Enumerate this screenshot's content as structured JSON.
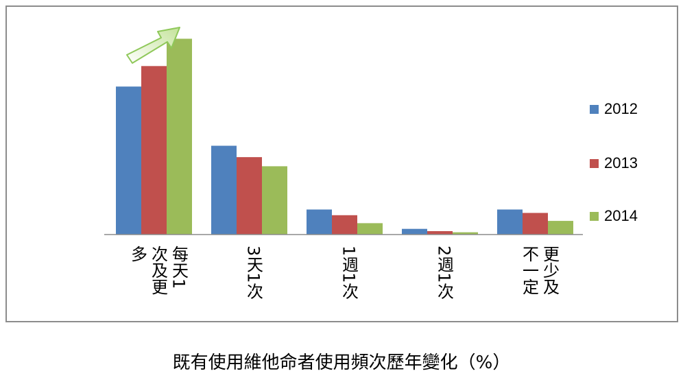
{
  "chart_data": {
    "type": "bar",
    "title": "",
    "caption": "既有使用維他命者使用頻次歷年變化（%）",
    "categories": [
      "每天1次及更多",
      "3天1次",
      "1週1次",
      "2週1次",
      "更少及不一定"
    ],
    "series": [
      {
        "name": "2012",
        "color": "#4f81bd",
        "values": [
          65,
          39,
          11,
          2.5,
          11
        ]
      },
      {
        "name": "2013",
        "color": "#c0504d",
        "values": [
          74,
          34,
          8.5,
          1.5,
          9.5
        ]
      },
      {
        "name": "2014",
        "color": "#9bbb59",
        "values": [
          86,
          30,
          5,
          1,
          6
        ]
      }
    ],
    "ylim": [
      0,
      100
    ],
    "legend_position": "right",
    "grid": false,
    "annotation": "green-up-arrow"
  }
}
